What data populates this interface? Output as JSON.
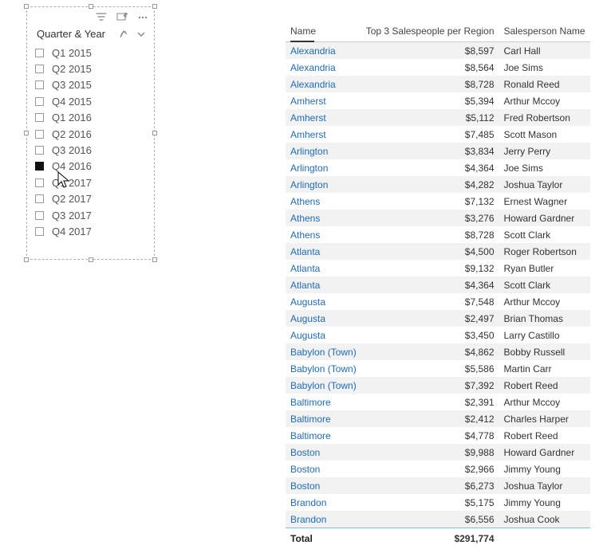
{
  "slicer": {
    "title": "Quarter & Year",
    "items": [
      {
        "label": "Q1 2015",
        "checked": false
      },
      {
        "label": "Q2 2015",
        "checked": false
      },
      {
        "label": "Q3 2015",
        "checked": false
      },
      {
        "label": "Q4 2015",
        "checked": false
      },
      {
        "label": "Q1 2016",
        "checked": false
      },
      {
        "label": "Q2 2016",
        "checked": false
      },
      {
        "label": "Q3 2016",
        "checked": false
      },
      {
        "label": "Q4 2016",
        "checked": true
      },
      {
        "label": "Q1 2017",
        "checked": false
      },
      {
        "label": "Q2 2017",
        "checked": false
      },
      {
        "label": "Q3 2017",
        "checked": false
      },
      {
        "label": "Q4 2017",
        "checked": false
      }
    ]
  },
  "table": {
    "columns": {
      "name": "Name",
      "metric": "Top 3 Salespeople per Region",
      "salesperson": "Salesperson Name"
    },
    "sorted_column": "name",
    "rows": [
      {
        "name": "Alexandria",
        "metric": "$8,597",
        "sp": "Carl Hall"
      },
      {
        "name": "Alexandria",
        "metric": "$8,564",
        "sp": "Joe Sims"
      },
      {
        "name": "Alexandria",
        "metric": "$8,728",
        "sp": "Ronald Reed"
      },
      {
        "name": "Amherst",
        "metric": "$5,394",
        "sp": "Arthur Mccoy"
      },
      {
        "name": "Amherst",
        "metric": "$5,112",
        "sp": "Fred Robertson"
      },
      {
        "name": "Amherst",
        "metric": "$7,485",
        "sp": "Scott Mason"
      },
      {
        "name": "Arlington",
        "metric": "$3,834",
        "sp": "Jerry Perry"
      },
      {
        "name": "Arlington",
        "metric": "$4,364",
        "sp": "Joe Sims"
      },
      {
        "name": "Arlington",
        "metric": "$4,282",
        "sp": "Joshua Taylor"
      },
      {
        "name": "Athens",
        "metric": "$7,132",
        "sp": "Ernest Wagner"
      },
      {
        "name": "Athens",
        "metric": "$3,276",
        "sp": "Howard Gardner"
      },
      {
        "name": "Athens",
        "metric": "$8,728",
        "sp": "Scott Clark"
      },
      {
        "name": "Atlanta",
        "metric": "$4,500",
        "sp": "Roger Robertson"
      },
      {
        "name": "Atlanta",
        "metric": "$9,132",
        "sp": "Ryan Butler"
      },
      {
        "name": "Atlanta",
        "metric": "$4,364",
        "sp": "Scott Clark"
      },
      {
        "name": "Augusta",
        "metric": "$7,548",
        "sp": "Arthur Mccoy"
      },
      {
        "name": "Augusta",
        "metric": "$2,497",
        "sp": "Brian Thomas"
      },
      {
        "name": "Augusta",
        "metric": "$3,450",
        "sp": "Larry Castillo"
      },
      {
        "name": "Babylon (Town)",
        "metric": "$4,862",
        "sp": "Bobby Russell"
      },
      {
        "name": "Babylon (Town)",
        "metric": "$5,586",
        "sp": "Martin Carr"
      },
      {
        "name": "Babylon (Town)",
        "metric": "$7,392",
        "sp": "Robert Reed"
      },
      {
        "name": "Baltimore",
        "metric": "$2,391",
        "sp": "Arthur Mccoy"
      },
      {
        "name": "Baltimore",
        "metric": "$2,412",
        "sp": "Charles Harper"
      },
      {
        "name": "Baltimore",
        "metric": "$4,778",
        "sp": "Robert Reed"
      },
      {
        "name": "Boston",
        "metric": "$9,988",
        "sp": "Howard Gardner"
      },
      {
        "name": "Boston",
        "metric": "$2,966",
        "sp": "Jimmy Young"
      },
      {
        "name": "Boston",
        "metric": "$6,273",
        "sp": "Joshua Taylor"
      },
      {
        "name": "Brandon",
        "metric": "$5,175",
        "sp": "Jimmy Young"
      },
      {
        "name": "Brandon",
        "metric": "$6,556",
        "sp": "Joshua Cook"
      }
    ],
    "footer": {
      "label": "Total",
      "metric": "$291,774"
    }
  },
  "colors": {
    "link": "#1f6bb7",
    "row_alt": "#f2f2f2",
    "border": "#cccccc",
    "footer_border": "#7ec6c0"
  }
}
